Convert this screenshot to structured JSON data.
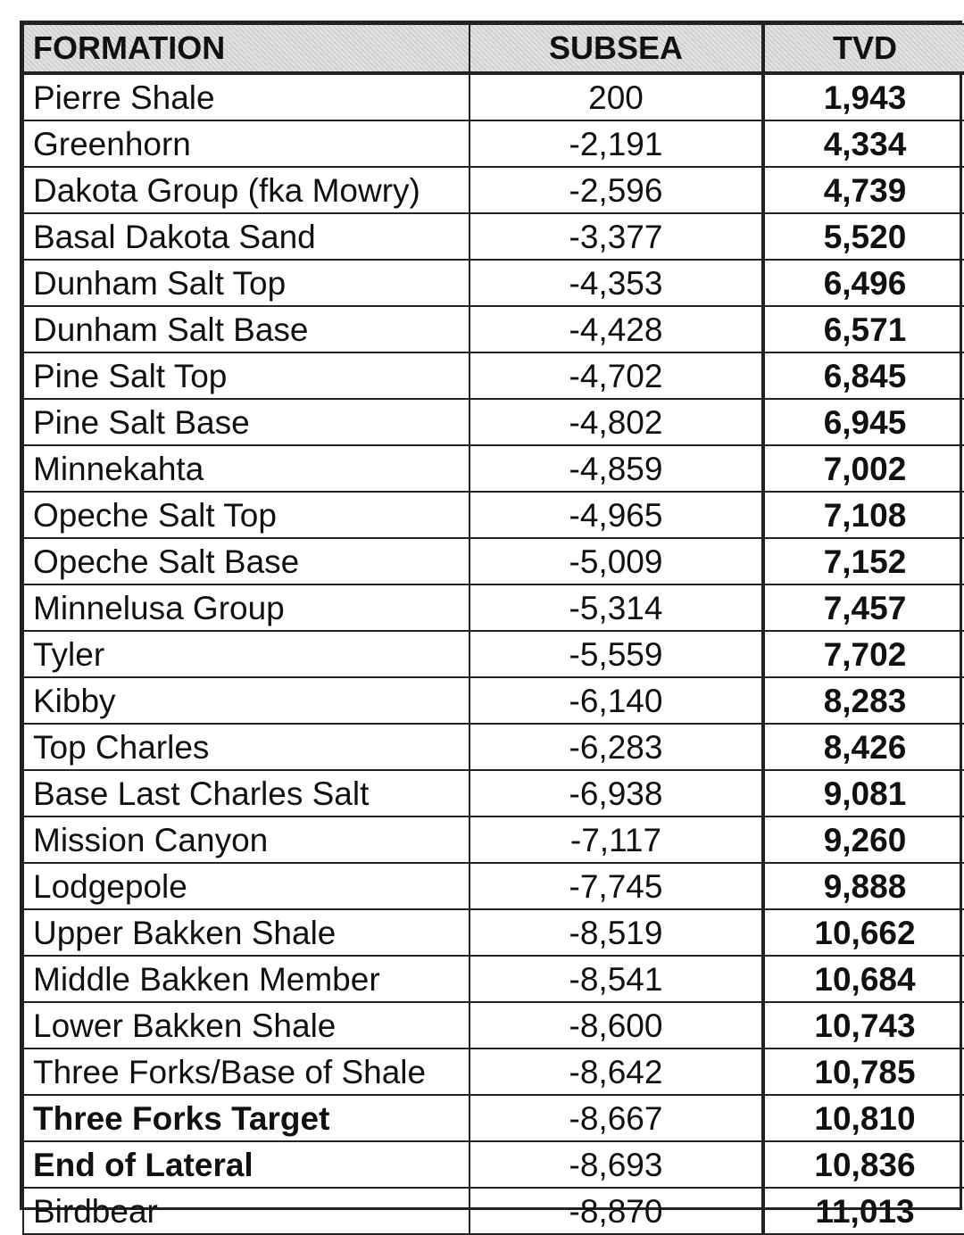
{
  "headers": {
    "formation": "FORMATION",
    "subsea": "SUBSEA",
    "tvd": "TVD"
  },
  "rows": [
    {
      "formation": "Pierre Shale",
      "subsea": "200",
      "tvd": "1,943",
      "bold": false
    },
    {
      "formation": "Greenhorn",
      "subsea": "-2,191",
      "tvd": "4,334",
      "bold": false
    },
    {
      "formation": "Dakota Group (fka Mowry)",
      "subsea": "-2,596",
      "tvd": "4,739",
      "bold": false
    },
    {
      "formation": "Basal Dakota Sand",
      "subsea": "-3,377",
      "tvd": "5,520",
      "bold": false
    },
    {
      "formation": "Dunham Salt Top",
      "subsea": "-4,353",
      "tvd": "6,496",
      "bold": false
    },
    {
      "formation": "Dunham Salt Base",
      "subsea": "-4,428",
      "tvd": "6,571",
      "bold": false
    },
    {
      "formation": "Pine Salt Top",
      "subsea": "-4,702",
      "tvd": "6,845",
      "bold": false
    },
    {
      "formation": "Pine Salt Base",
      "subsea": "-4,802",
      "tvd": "6,945",
      "bold": false
    },
    {
      "formation": "Minnekahta",
      "subsea": "-4,859",
      "tvd": "7,002",
      "bold": false
    },
    {
      "formation": "Opeche Salt Top",
      "subsea": "-4,965",
      "tvd": "7,108",
      "bold": false
    },
    {
      "formation": "Opeche Salt Base",
      "subsea": "-5,009",
      "tvd": "7,152",
      "bold": false
    },
    {
      "formation": "Minnelusa Group",
      "subsea": "-5,314",
      "tvd": "7,457",
      "bold": false
    },
    {
      "formation": "Tyler",
      "subsea": "-5,559",
      "tvd": "7,702",
      "bold": false
    },
    {
      "formation": "Kibby",
      "subsea": "-6,140",
      "tvd": "8,283",
      "bold": false
    },
    {
      "formation": "Top Charles",
      "subsea": "-6,283",
      "tvd": "8,426",
      "bold": false
    },
    {
      "formation": "Base Last Charles Salt",
      "subsea": "-6,938",
      "tvd": "9,081",
      "bold": false
    },
    {
      "formation": "Mission Canyon",
      "subsea": "-7,117",
      "tvd": "9,260",
      "bold": false
    },
    {
      "formation": "Lodgepole",
      "subsea": "-7,745",
      "tvd": "9,888",
      "bold": false
    },
    {
      "formation": "Upper Bakken Shale",
      "subsea": "-8,519",
      "tvd": "10,662",
      "bold": false
    },
    {
      "formation": "Middle Bakken Member",
      "subsea": "-8,541",
      "tvd": "10,684",
      "bold": false
    },
    {
      "formation": "Lower Bakken Shale",
      "subsea": "-8,600",
      "tvd": "10,743",
      "bold": false
    },
    {
      "formation": "Three Forks/Base of Shale",
      "subsea": "-8,642",
      "tvd": "10,785",
      "bold": false
    },
    {
      "formation": "Three Forks Target",
      "subsea": "-8,667",
      "tvd": "10,810",
      "bold": true
    },
    {
      "formation": "End of Lateral",
      "subsea": "-8,693",
      "tvd": "10,836",
      "bold": true
    },
    {
      "formation": "Birdbear",
      "subsea": "-8,870",
      "tvd": "11,013",
      "bold": false
    }
  ]
}
